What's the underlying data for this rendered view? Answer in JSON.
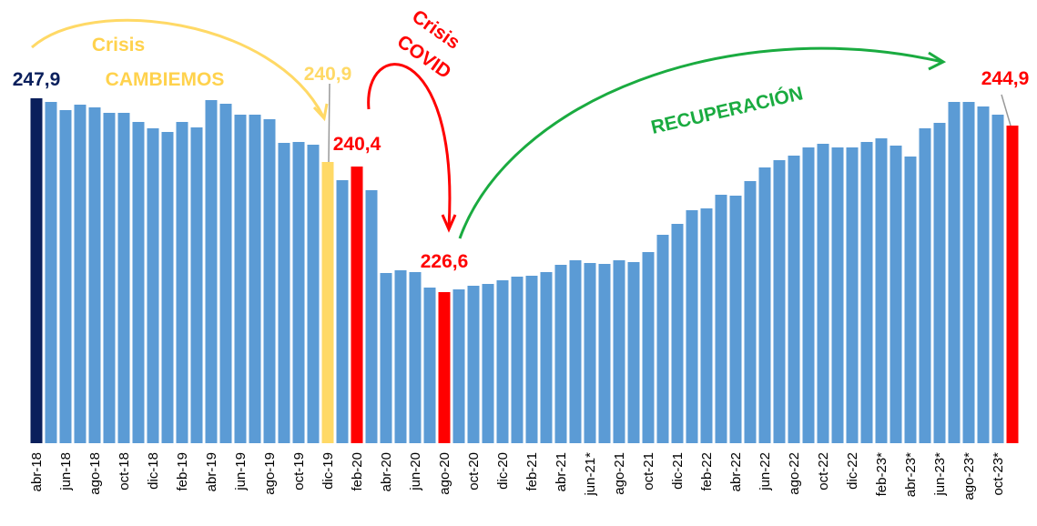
{
  "chart_data": {
    "type": "bar",
    "categories": [
      "abr-18",
      null,
      "jun-18",
      null,
      "ago-18",
      null,
      "oct-18",
      null,
      "dic-18",
      null,
      "feb-19",
      null,
      "abr-19",
      null,
      "jun-19",
      null,
      "ago-19",
      null,
      "oct-19",
      null,
      "dic-19",
      null,
      "feb-20",
      null,
      "abr-20",
      null,
      "jun-20",
      null,
      "ago-20",
      null,
      "oct-20",
      null,
      "dic-20",
      null,
      "feb-21",
      null,
      "abr-21",
      null,
      "jun-21*",
      null,
      "ago-21",
      null,
      "oct-21",
      null,
      "dic-21",
      null,
      "feb-22",
      null,
      "abr-22",
      null,
      "jun-22",
      null,
      "ago-22",
      null,
      "oct-22",
      null,
      "dic-22",
      null,
      "feb-23*",
      null,
      "abr-23*",
      null,
      "jun-23*",
      null,
      "ago-23*",
      null,
      "oct-23*",
      null
    ],
    "values": [
      247.9,
      247.5,
      246.6,
      247.2,
      246.9,
      246.3,
      246.3,
      245.3,
      244.6,
      244.2,
      245.3,
      244.7,
      247.7,
      247.3,
      246.1,
      246.1,
      245.6,
      243.0,
      243.1,
      242.8,
      240.9,
      238.9,
      240.4,
      237.8,
      228.7,
      229.0,
      228.8,
      227.1,
      226.6,
      226.9,
      227.3,
      227.5,
      227.9,
      228.3,
      228.4,
      228.8,
      229.6,
      230.1,
      229.8,
      229.7,
      230.1,
      229.9,
      231.0,
      232.9,
      234.1,
      235.6,
      235.8,
      237.3,
      237.2,
      238.8,
      240.3,
      241.1,
      241.6,
      242.5,
      242.9,
      242.5,
      242.5,
      243.1,
      243.5,
      242.7,
      241.5,
      244.6,
      245.2,
      247.5,
      247.5,
      247.0,
      246.1,
      244.9
    ],
    "value_labels": [
      "247,9",
      null,
      null,
      null,
      null,
      null,
      null,
      null,
      null,
      null,
      null,
      null,
      null,
      null,
      null,
      null,
      null,
      null,
      null,
      null,
      "240,9",
      null,
      "240,4",
      null,
      null,
      null,
      null,
      null,
      "226,6",
      null,
      null,
      null,
      null,
      null,
      null,
      null,
      null,
      null,
      null,
      null,
      null,
      null,
      null,
      null,
      null,
      null,
      null,
      null,
      null,
      null,
      null,
      null,
      null,
      null,
      null,
      null,
      null,
      null,
      null,
      null,
      null,
      null,
      null,
      null,
      null,
      null,
      null,
      "244,9"
    ],
    "color": "#5b9bd5",
    "highlight_colors": {
      "0": "#0a1f5c",
      "20": "#ffd966",
      "22": "#ff0000",
      "28": "#ff0000",
      "67": "#ff0000"
    },
    "ylim": [
      210,
      250
    ],
    "annotations": [
      {
        "text": [
          "Crisis",
          "CAMBIEMOS"
        ],
        "color": "#ffd24d"
      },
      {
        "text": [
          "Crisis",
          "COVID"
        ],
        "color": "#ff0000"
      },
      {
        "text": [
          "RECUPERACIÓN"
        ],
        "color": "#1aab40"
      }
    ]
  }
}
